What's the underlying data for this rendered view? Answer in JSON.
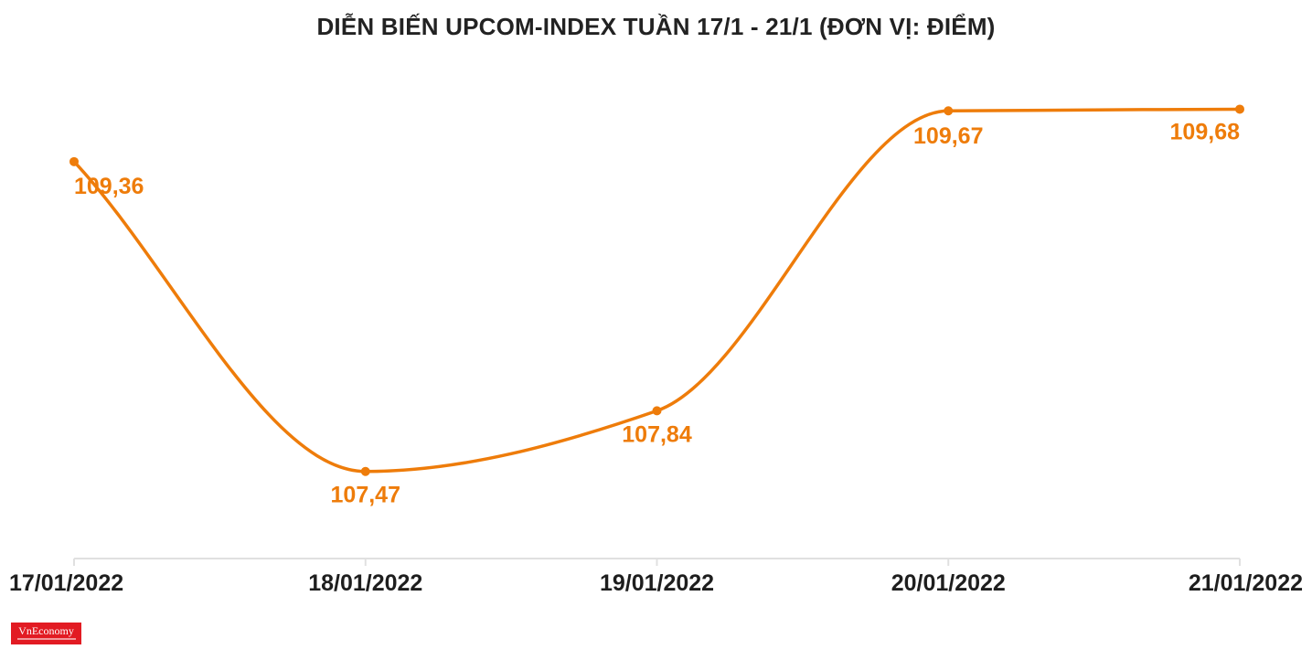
{
  "chart_data": {
    "type": "line",
    "title": "DIỄN BIẾN UPCOM-INDEX TUẦN 17/1 - 21/1 (ĐƠN VỊ: ĐIỂM)",
    "xlabel": "",
    "ylabel": "",
    "categories": [
      "17/01/2022",
      "18/01/2022",
      "19/01/2022",
      "20/01/2022",
      "21/01/2022"
    ],
    "series": [
      {
        "values": [
          109.36,
          107.47,
          107.84,
          109.67,
          109.68
        ],
        "labels": [
          "109,36",
          "107,47",
          "107,84",
          "109,67",
          "109,68"
        ]
      }
    ],
    "ylim": [
      107.0,
      109.9
    ],
    "grid": false,
    "legend": "none",
    "line_color": "#ee7c0a",
    "axis_color": "#e0e0e0"
  },
  "logo": {
    "text": "VnEconomy"
  }
}
